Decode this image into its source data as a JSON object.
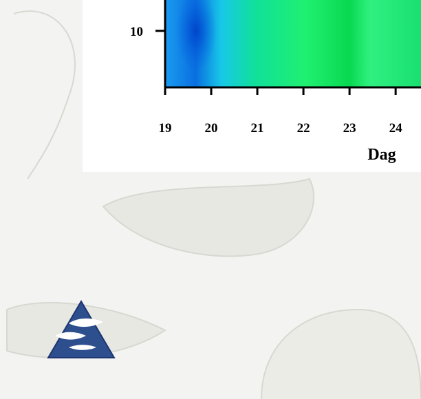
{
  "chart_data": {
    "type": "heatmap",
    "x_label": "Dag",
    "xlim": [
      19,
      24.55
    ],
    "xticks": [
      19,
      20,
      21,
      22,
      23,
      24
    ],
    "ylim": [
      5,
      12.8
    ],
    "yticks": [
      10
    ]
  }
}
